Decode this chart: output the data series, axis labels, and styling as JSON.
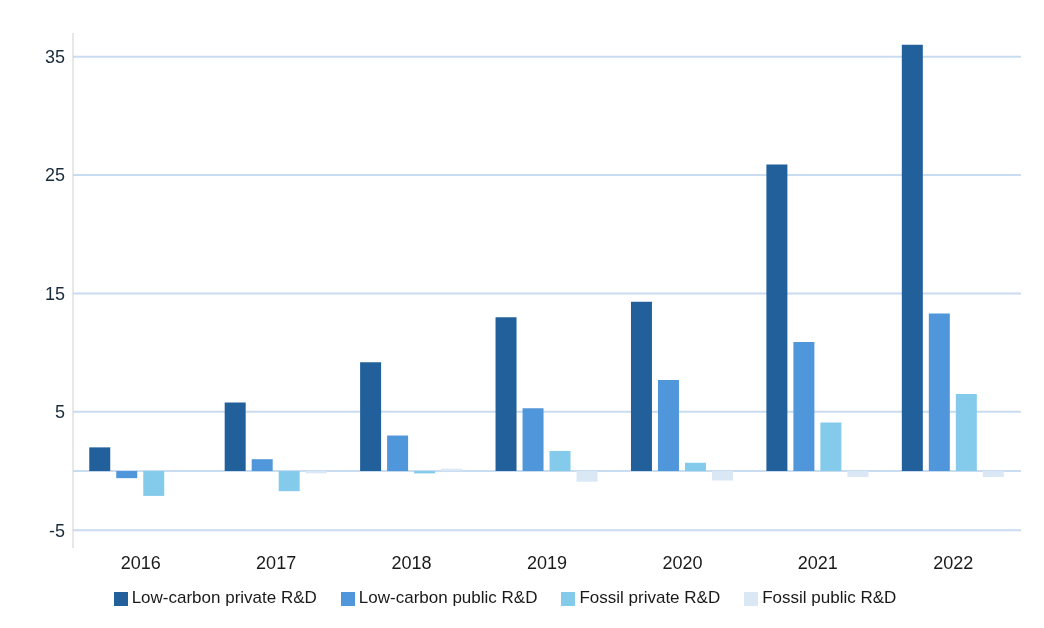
{
  "chart_data": {
    "type": "bar",
    "categories": [
      "2016",
      "2017",
      "2018",
      "2019",
      "2020",
      "2021",
      "2022"
    ],
    "series": [
      {
        "name": "Low-carbon private R&D",
        "color": "#22609c",
        "values": [
          2.0,
          5.8,
          9.2,
          13.0,
          14.3,
          25.9,
          36.0
        ]
      },
      {
        "name": "Low-carbon public R&D",
        "color": "#5096da",
        "values": [
          -0.6,
          1.0,
          3.0,
          5.3,
          7.7,
          10.9,
          13.3
        ]
      },
      {
        "name": "Fossil private R&D",
        "color": "#84cbeb",
        "values": [
          -2.1,
          -1.7,
          -0.2,
          1.7,
          0.7,
          4.1,
          6.5
        ]
      },
      {
        "name": "Fossil public R&D",
        "color": "#dae8f5",
        "values": [
          0,
          -0.2,
          0.2,
          -0.9,
          -0.8,
          -0.5,
          -0.5
        ]
      }
    ],
    "ylim": [
      -6.5,
      37
    ],
    "yticks": [
      -5,
      5,
      15,
      25,
      35
    ],
    "grid": "y",
    "legend": "bottom"
  }
}
